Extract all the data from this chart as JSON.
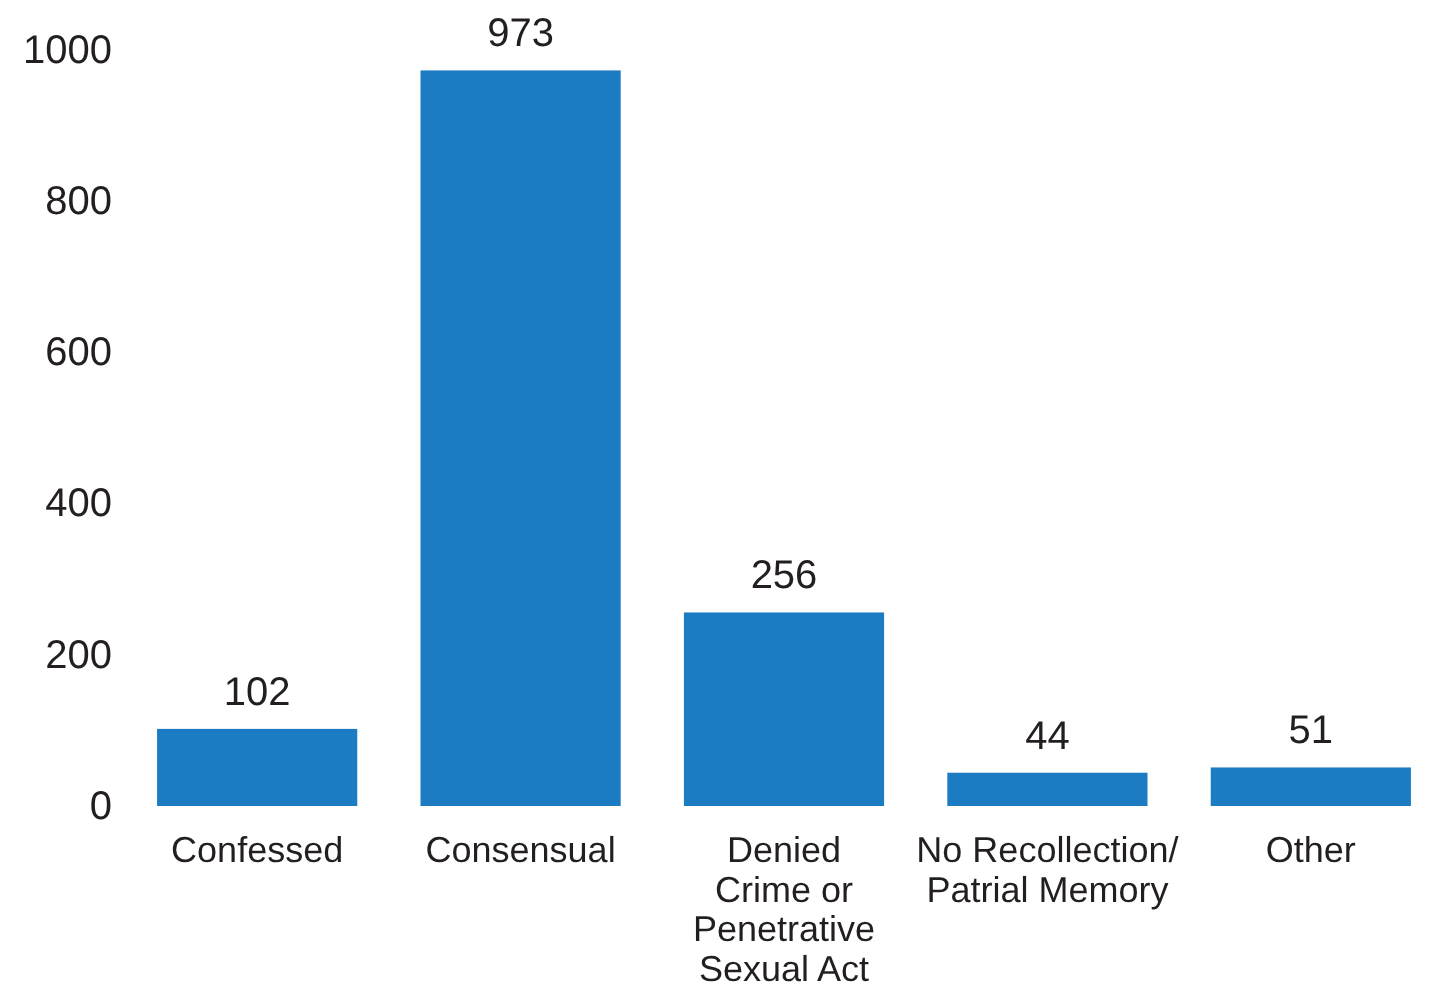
{
  "chart_data": {
    "type": "bar",
    "categories": [
      "Confessed",
      "Consensual",
      "Denied\nCrime or\nPenetrative\nSexual Act",
      "No Recollection/\nPatrial Memory",
      "Other"
    ],
    "values": [
      102,
      973,
      256,
      44,
      51
    ],
    "color": "#1b7cc4",
    "ylim": [
      0,
      1000
    ],
    "yticks": [
      0,
      200,
      400,
      600,
      800,
      1000
    ],
    "data_labels": true,
    "grid": false
  }
}
